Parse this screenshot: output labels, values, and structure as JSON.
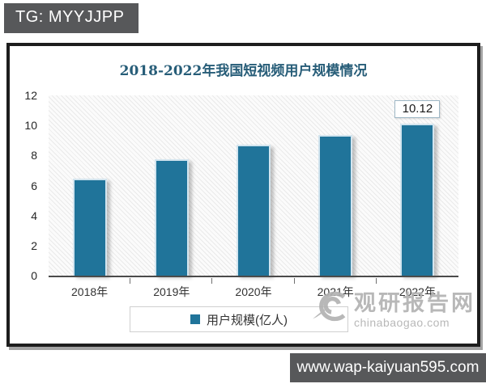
{
  "badge": {
    "text": "TG: MYYJJPP"
  },
  "chart_data": {
    "type": "bar",
    "title": "2018-2022年我国短视频用户规模情况",
    "categories": [
      "2018年",
      "2019年",
      "2020年",
      "2021年",
      "2022年"
    ],
    "values": [
      6.48,
      7.73,
      8.73,
      9.34,
      10.12
    ],
    "series_name": "用户规模(亿人)",
    "xlabel": "",
    "ylabel": "",
    "ylim": [
      0,
      12
    ],
    "yticks": [
      0,
      2,
      4,
      6,
      8,
      10,
      12
    ],
    "grid": false,
    "legend_position": "bottom",
    "annotations": [
      {
        "category": "2022年",
        "text": "10.12"
      }
    ],
    "colors": {
      "bar": "#20749A",
      "title": "#275D78"
    }
  },
  "legend": {
    "label": "用户规模(亿人)",
    "swatch_color": "#20749A"
  },
  "watermark": {
    "site_name": "观研报告网",
    "site_domain": "chinabaogao.com"
  },
  "footer": {
    "url": "www.wap-kaiyuan595.com"
  }
}
